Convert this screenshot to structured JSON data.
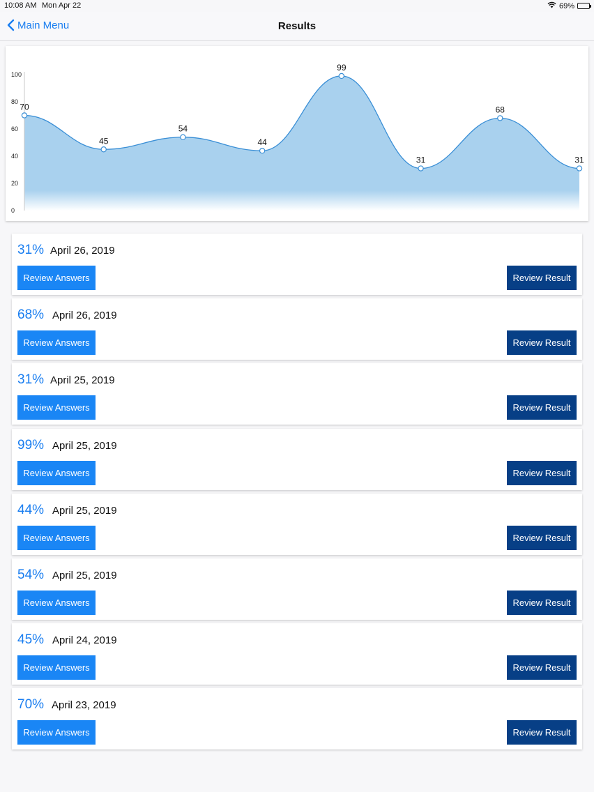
{
  "status_bar": {
    "time": "10:08 AM",
    "date": "Mon Apr 22",
    "battery": "69%",
    "battery_level": 0.69
  },
  "nav": {
    "back_label": "Main Menu",
    "title": "Results"
  },
  "colors": {
    "accent": "#1a7ef0",
    "answers_button": "#1a86f5",
    "result_button": "#073f86",
    "area_fill": "#a9d1ee",
    "line": "#3a8fd6"
  },
  "chart_data": {
    "type": "area",
    "values": [
      70,
      45,
      54,
      44,
      99,
      31,
      68,
      31
    ],
    "y_ticks": [
      "0",
      "20",
      "40",
      "60",
      "80",
      "100"
    ],
    "ylim": [
      0,
      100
    ],
    "grid": false,
    "smooth": true
  },
  "results": [
    {
      "score": "31%",
      "date": "April 26, 2019",
      "answers_label": "Review Answers",
      "result_label": "Review Result"
    },
    {
      "score": "68%",
      "date": "April 26, 2019",
      "answers_label": "Review Answers",
      "result_label": "Review Result"
    },
    {
      "score": "31%",
      "date": "April 25, 2019",
      "answers_label": "Review Answers",
      "result_label": "Review Result"
    },
    {
      "score": "99%",
      "date": "April 25, 2019",
      "answers_label": "Review Answers",
      "result_label": "Review Result"
    },
    {
      "score": "44%",
      "date": "April 25, 2019",
      "answers_label": "Review Answers",
      "result_label": "Review Result"
    },
    {
      "score": "54%",
      "date": "April 25, 2019",
      "answers_label": "Review Answers",
      "result_label": "Review Result"
    },
    {
      "score": "45%",
      "date": "April 24, 2019",
      "answers_label": "Review Answers",
      "result_label": "Review Result"
    },
    {
      "score": "70%",
      "date": "April 23, 2019",
      "answers_label": "Review Answers",
      "result_label": "Review Result"
    }
  ]
}
